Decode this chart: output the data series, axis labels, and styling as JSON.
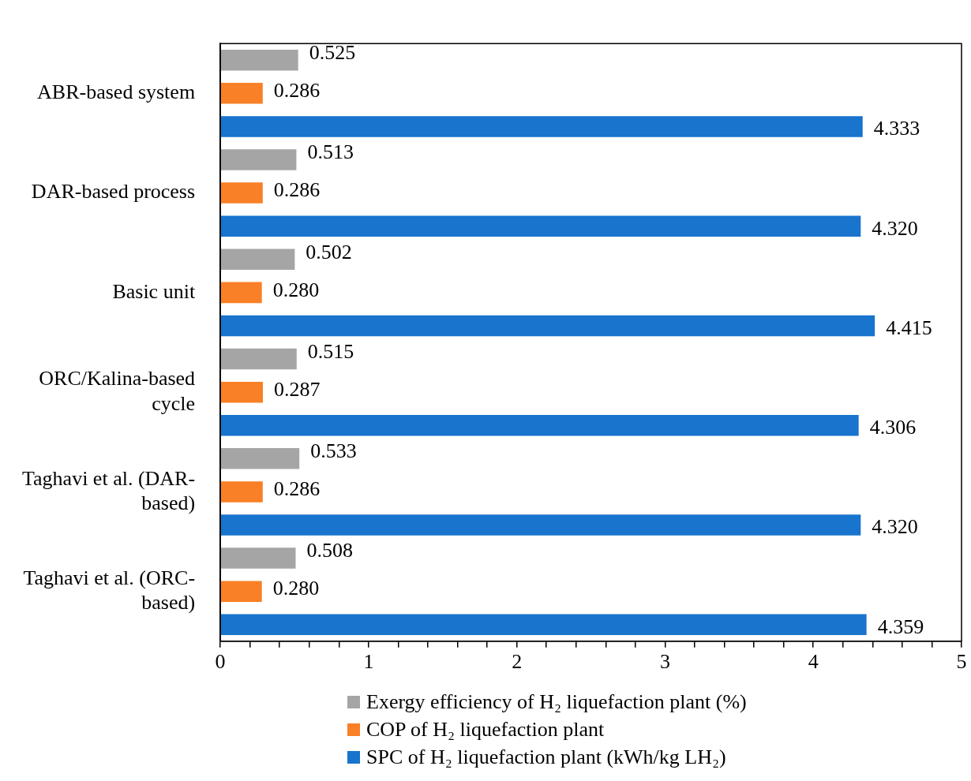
{
  "chart_data": {
    "type": "bar",
    "orientation": "horizontal",
    "categories": [
      "ABR-based system",
      "DAR-based process",
      "Basic unit",
      "ORC/Kalina-based cycle",
      "Taghavi et al. (DAR-based)",
      "Taghavi et al. (ORC-based)"
    ],
    "series": [
      {
        "name": "Exergy efficiency of H₂ liquefaction plant (%)",
        "color": "#a5a5a5",
        "values": [
          0.525,
          0.513,
          0.502,
          0.515,
          0.533,
          0.508
        ],
        "value_labels": [
          "0.525",
          "0.513",
          "0.502",
          "0.515",
          "0.533",
          "0.508"
        ]
      },
      {
        "name": "COP of H₂ liquefaction plant",
        "color": "#f98026",
        "values": [
          0.286,
          0.286,
          0.28,
          0.287,
          0.286,
          0.28
        ],
        "value_labels": [
          "0.286",
          "0.286",
          "0.280",
          "0.287",
          "0.286",
          "0.280"
        ]
      },
      {
        "name": "SPC of H₂ liquefaction plant (kWh/kg LH₂)",
        "color": "#1874cd",
        "values": [
          4.333,
          4.32,
          4.415,
          4.306,
          4.32,
          4.359
        ],
        "value_labels": [
          "4.333",
          "4.320",
          "4.415",
          "4.306",
          "4.320",
          "4.359"
        ]
      }
    ],
    "xlim": [
      0,
      5
    ],
    "xticks": [
      0,
      {
        "value": 0.2,
        "label": null
      },
      {
        "value": 0.4,
        "label": null
      },
      {
        "value": 0.6,
        "label": null
      },
      {
        "value": 0.8,
        "label": null
      },
      1,
      {
        "value": 1.2,
        "label": null
      },
      {
        "value": 1.4,
        "label": null
      },
      {
        "value": 1.6,
        "label": null
      },
      {
        "value": 1.8,
        "label": null
      },
      2,
      {
        "value": 2.2,
        "label": null
      },
      {
        "value": 2.4,
        "label": null
      },
      {
        "value": 2.6,
        "label": null
      },
      {
        "value": 2.8,
        "label": null
      },
      3,
      {
        "value": 3.2,
        "label": null
      },
      {
        "value": 3.4,
        "label": null
      },
      {
        "value": 3.6,
        "label": null
      },
      {
        "value": 3.8,
        "label": null
      },
      4,
      {
        "value": 4.2,
        "label": null
      },
      {
        "value": 4.4,
        "label": null
      },
      {
        "value": 4.6,
        "label": null
      },
      {
        "value": 4.8,
        "label": null
      },
      5
    ],
    "grid": false,
    "legend": "bottom"
  }
}
